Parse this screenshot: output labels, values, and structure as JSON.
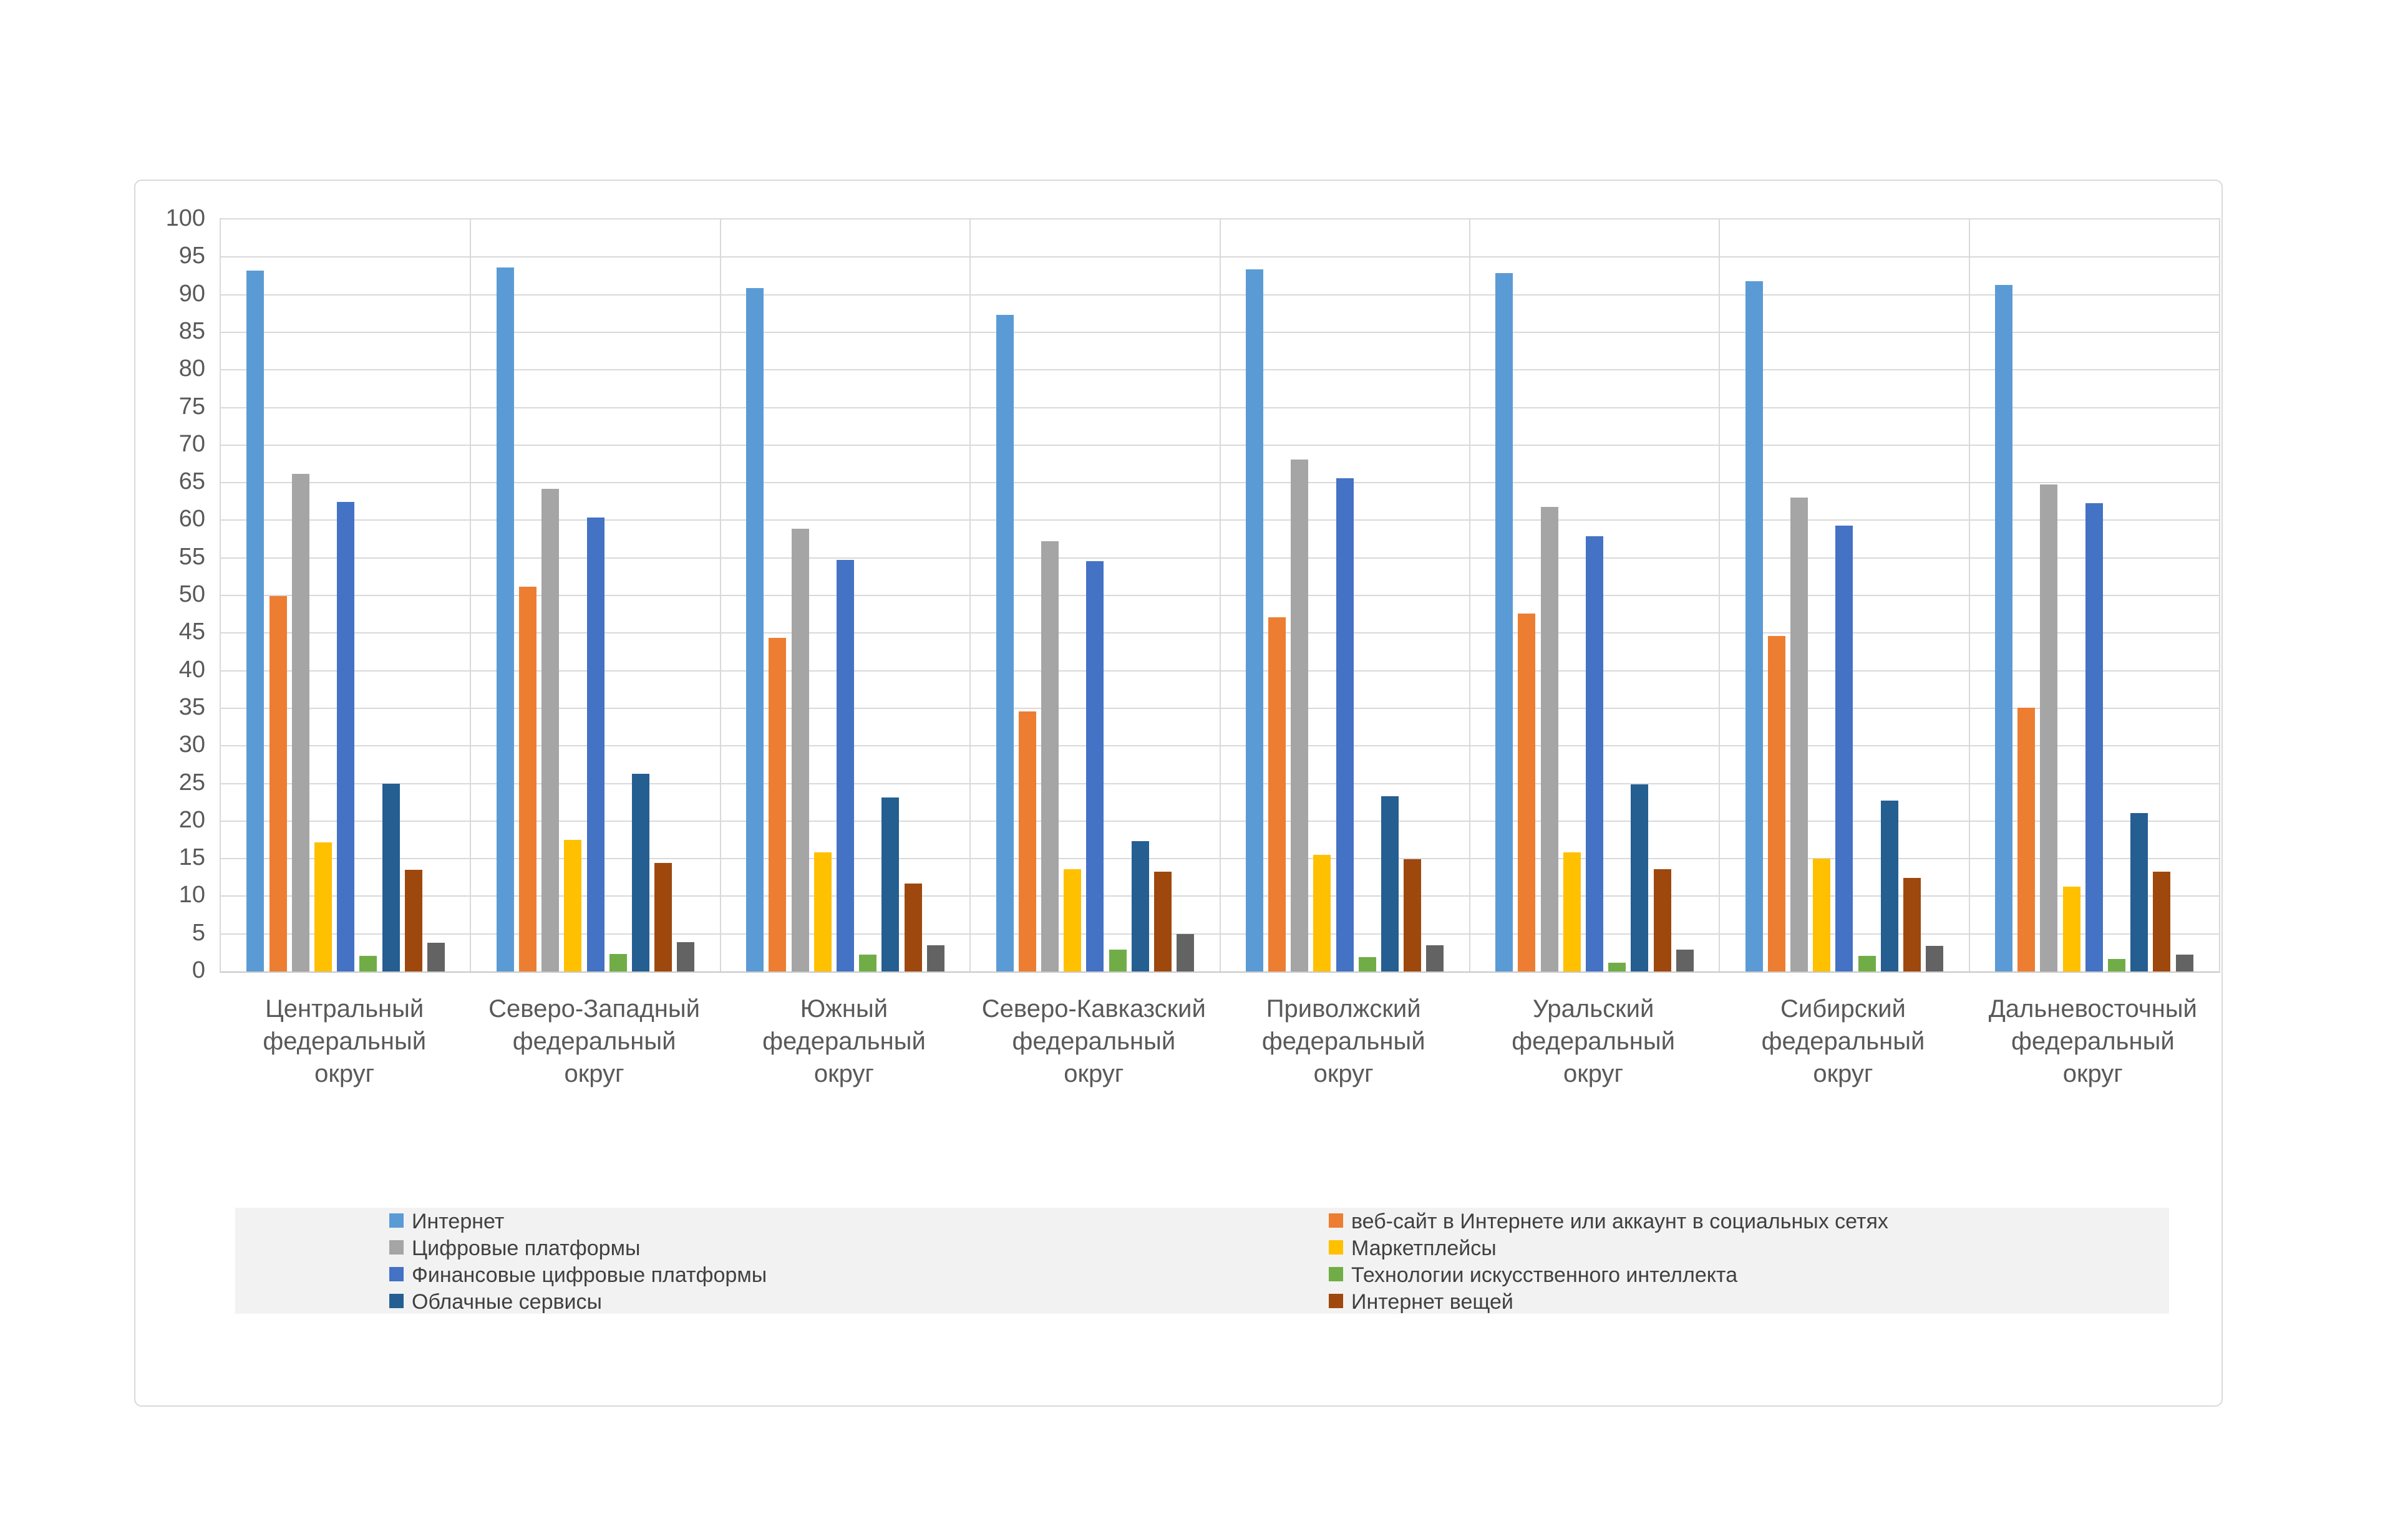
{
  "chart_data": {
    "type": "bar",
    "title": "",
    "xlabel": "",
    "ylabel": "",
    "ylim": [
      0,
      100
    ],
    "ytick_step": 5,
    "grid": true,
    "legend_position": "bottom",
    "colors": {
      "gridline": "#d9d9d9",
      "axis_text": "#595959",
      "legend_text": "#404040",
      "legend_background": "#f2f2f2",
      "chart_border": "#d9d9d9",
      "background": "#ffffff"
    },
    "categories": [
      [
        "Центральный",
        "федеральный",
        "округ"
      ],
      [
        "Северо-Западный",
        "федеральный",
        "округ"
      ],
      [
        "Южный",
        "федеральный",
        "округ"
      ],
      [
        "Северо-Кавказский",
        "федеральный",
        "округ"
      ],
      [
        "Приволжский",
        "федеральный",
        "округ"
      ],
      [
        "Уральский",
        "федеральный",
        "округ"
      ],
      [
        "Сибирский",
        "федеральный",
        "округ"
      ],
      [
        "Дальневосточный",
        "федеральный",
        "округ"
      ]
    ],
    "series": [
      {
        "name": "Интернет",
        "color": "#5b9bd5",
        "in_legend": true,
        "values": [
          93.2,
          93.6,
          90.9,
          87.3,
          93.4,
          92.9,
          91.8,
          91.3
        ]
      },
      {
        "name": "веб-сайт в Интернете или аккаунт в социальных сетях",
        "color": "#ed7d31",
        "in_legend": true,
        "values": [
          49.9,
          51.2,
          44.4,
          34.6,
          47.1,
          47.6,
          44.6,
          35.1
        ]
      },
      {
        "name": "Цифровые платформы",
        "color": "#a5a5a5",
        "in_legend": true,
        "values": [
          66.2,
          64.2,
          58.9,
          57.2,
          68.1,
          61.8,
          63.0,
          64.8
        ]
      },
      {
        "name": "Маркетплейсы",
        "color": "#ffc000",
        "in_legend": true,
        "values": [
          17.2,
          17.5,
          15.8,
          13.6,
          15.5,
          15.8,
          15.0,
          11.3
        ]
      },
      {
        "name": "Финансовые цифровые платформы",
        "color": "#4472c4",
        "in_legend": true,
        "values": [
          62.4,
          60.4,
          54.7,
          54.6,
          65.6,
          57.9,
          59.3,
          62.3
        ]
      },
      {
        "name": "Технологии искусственного интеллекта",
        "color": "#70ad47",
        "in_legend": true,
        "values": [
          2.1,
          2.3,
          2.2,
          2.9,
          1.9,
          1.2,
          2.1,
          1.7
        ]
      },
      {
        "name": "Облачные сервисы",
        "color": "#255e91",
        "in_legend": true,
        "values": [
          25.0,
          26.3,
          23.1,
          17.3,
          23.3,
          24.9,
          22.7,
          21.1
        ]
      },
      {
        "name": "Интернет вещей",
        "color": "#9e480e",
        "in_legend": true,
        "values": [
          13.5,
          14.4,
          11.7,
          13.3,
          14.9,
          13.6,
          12.4,
          13.3
        ]
      },
      {
        "name": "",
        "color": "#636363",
        "in_legend": false,
        "values": [
          3.8,
          3.9,
          3.5,
          5.0,
          3.5,
          2.9,
          3.4,
          2.2
        ]
      }
    ],
    "legend_columns": [
      [
        0,
        2,
        4,
        6
      ],
      [
        1,
        3,
        5,
        7
      ]
    ]
  }
}
